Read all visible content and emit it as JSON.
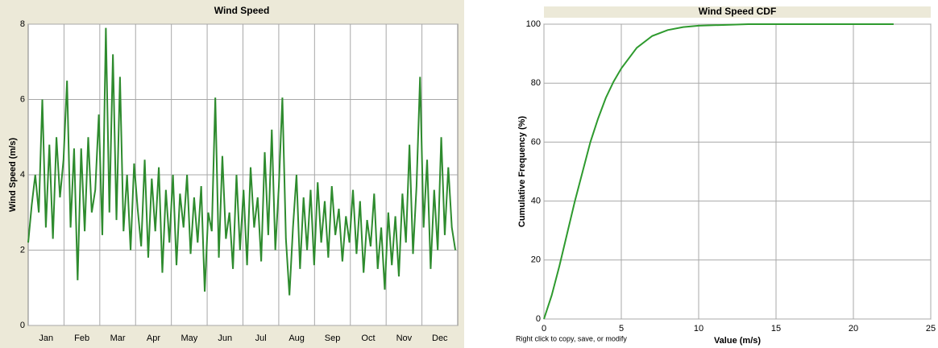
{
  "chart_data": [
    {
      "type": "line",
      "title": "Wind Speed",
      "y_label": "Wind Speed (m/s)",
      "categories": [
        "Jan",
        "Feb",
        "Mar",
        "Apr",
        "May",
        "Jun",
        "Jul",
        "Aug",
        "Sep",
        "Oct",
        "Nov",
        "Dec"
      ],
      "xlim": [
        0,
        365
      ],
      "ylim": [
        0,
        8
      ],
      "yticks": [
        0,
        2,
        4,
        6,
        8
      ],
      "grid": true,
      "series": [
        {
          "name": "Wind Speed",
          "color": "#2e8b2e",
          "x": [
            0,
            3,
            6,
            9,
            12,
            15,
            18,
            21,
            24,
            27,
            30,
            33,
            36,
            39,
            42,
            45,
            48,
            51,
            54,
            57,
            60,
            63,
            66,
            69,
            72,
            75,
            78,
            81,
            84,
            87,
            90,
            93,
            96,
            99,
            102,
            105,
            108,
            111,
            114,
            117,
            120,
            123,
            126,
            129,
            132,
            135,
            138,
            141,
            144,
            147,
            150,
            153,
            156,
            159,
            162,
            165,
            168,
            171,
            174,
            177,
            180,
            183,
            186,
            189,
            192,
            195,
            198,
            201,
            204,
            207,
            210,
            213,
            216,
            219,
            222,
            225,
            228,
            231,
            234,
            237,
            240,
            243,
            246,
            249,
            252,
            255,
            258,
            261,
            264,
            267,
            270,
            273,
            276,
            279,
            282,
            285,
            288,
            291,
            294,
            297,
            300,
            303,
            306,
            309,
            312,
            315,
            318,
            321,
            324,
            327,
            330,
            333,
            336,
            339,
            342,
            345,
            348,
            351,
            354,
            357,
            360,
            363
          ],
          "values": [
            2.2,
            3.2,
            4.0,
            3.0,
            6.0,
            2.6,
            4.8,
            2.3,
            5.0,
            3.4,
            4.4,
            6.5,
            2.6,
            4.7,
            1.2,
            4.7,
            2.5,
            5.0,
            3.0,
            3.6,
            5.6,
            2.4,
            7.9,
            3.0,
            7.2,
            2.8,
            6.6,
            2.5,
            4.0,
            2.0,
            4.3,
            3.1,
            2.1,
            4.4,
            1.8,
            3.9,
            2.5,
            4.2,
            1.4,
            3.6,
            2.2,
            4.0,
            1.6,
            3.5,
            2.6,
            4.0,
            1.9,
            3.4,
            2.2,
            3.7,
            0.9,
            3.0,
            2.5,
            6.05,
            1.8,
            4.5,
            2.3,
            3.0,
            1.5,
            4.0,
            2.0,
            3.6,
            1.6,
            4.2,
            2.6,
            3.4,
            1.7,
            4.6,
            2.4,
            5.2,
            2.0,
            3.7,
            6.05,
            2.3,
            0.8,
            2.6,
            4.0,
            1.5,
            3.4,
            2.0,
            3.6,
            1.6,
            3.8,
            2.2,
            3.3,
            1.8,
            3.7,
            2.4,
            3.1,
            1.7,
            2.9,
            2.2,
            3.6,
            1.9,
            3.3,
            1.4,
            2.8,
            2.1,
            3.5,
            1.5,
            2.6,
            0.95,
            3.0,
            1.6,
            2.9,
            1.3,
            3.5,
            2.2,
            4.8,
            1.9,
            3.7,
            6.6,
            2.6,
            4.4,
            1.5,
            3.6,
            2.0,
            5.0,
            2.4,
            4.2,
            2.6,
            2.0
          ]
        }
      ]
    },
    {
      "type": "line",
      "title": "Wind Speed CDF",
      "x_label": "Value (m/s)",
      "y_label": "Cumulative Frequency (%)",
      "note": "Right click to copy, save, or modify",
      "xlim": [
        0,
        25
      ],
      "xticks": [
        0,
        5,
        10,
        15,
        20,
        25
      ],
      "ylim": [
        0,
        100
      ],
      "yticks": [
        0,
        20,
        40,
        60,
        80,
        100
      ],
      "grid": true,
      "series": [
        {
          "name": "Wind Speed CDF",
          "color": "#2e9a2e",
          "x": [
            0,
            0.5,
            1,
            1.5,
            2,
            2.5,
            3,
            3.5,
            4,
            4.5,
            5,
            6,
            7,
            8,
            9,
            10,
            12,
            13.2,
            22.6
          ],
          "values": [
            0,
            8,
            18,
            29,
            40,
            50,
            60,
            68,
            75,
            80.5,
            85,
            92,
            96,
            98,
            99,
            99.5,
            99.8,
            100,
            100
          ]
        }
      ]
    }
  ]
}
